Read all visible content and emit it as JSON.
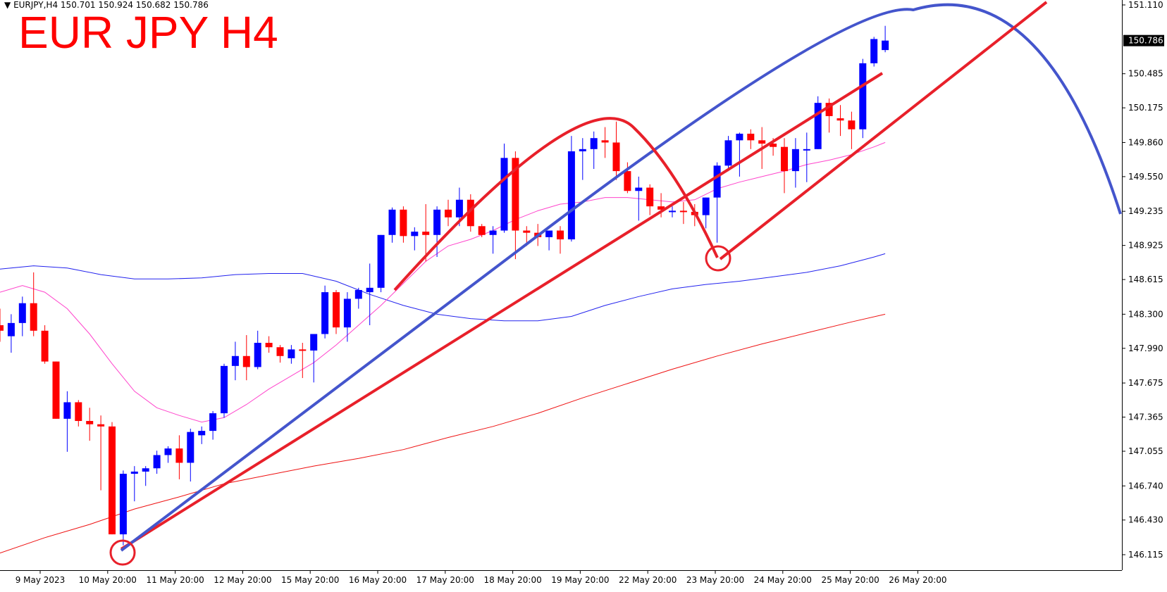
{
  "header": {
    "symbol": "EURJPY,H4",
    "ohlc": "150.701 150.924 150.682 150.786",
    "title_overlay": "EUR JPY H4"
  },
  "colors": {
    "bull": "#0000ff",
    "bear": "#ff0000",
    "ma_fast": "#ff44cc",
    "ma_mid": "#2222ee",
    "ma_slow": "#ee1111",
    "annotation_red": "#e8202a",
    "annotation_blue": "#4455cc"
  },
  "chart_data": {
    "type": "candlestick",
    "timeframe": "H4",
    "y_ticks": [
      "151.110",
      "150.485",
      "150.175",
      "149.860",
      "149.550",
      "149.235",
      "148.925",
      "148.615",
      "148.300",
      "147.990",
      "147.675",
      "147.365",
      "147.055",
      "146.740",
      "146.430",
      "146.115"
    ],
    "ylim": [
      146.02,
      151.19
    ],
    "x_labels": [
      "9 May 2023",
      "10 May 20:00",
      "11 May 20:00",
      "12 May 20:00",
      "15 May 20:00",
      "16 May 20:00",
      "17 May 20:00",
      "18 May 20:00",
      "19 May 20:00",
      "22 May 20:00",
      "23 May 20:00",
      "24 May 20:00",
      "25 May 20:00",
      "26 May 20:00"
    ],
    "current_price": "150.786",
    "candles": [
      {
        "o": 148.2,
        "h": 148.35,
        "l": 148.05,
        "c": 148.15
      },
      {
        "o": 148.1,
        "h": 148.3,
        "l": 147.95,
        "c": 148.22
      },
      {
        "o": 148.22,
        "h": 148.46,
        "l": 148.1,
        "c": 148.4
      },
      {
        "o": 148.4,
        "h": 148.68,
        "l": 148.1,
        "c": 148.15
      },
      {
        "o": 148.15,
        "h": 148.2,
        "l": 147.85,
        "c": 147.87
      },
      {
        "o": 147.87,
        "h": 147.87,
        "l": 147.35,
        "c": 147.35
      },
      {
        "o": 147.35,
        "h": 147.6,
        "l": 147.05,
        "c": 147.5
      },
      {
        "o": 147.5,
        "h": 147.52,
        "l": 147.28,
        "c": 147.33
      },
      {
        "o": 147.33,
        "h": 147.45,
        "l": 147.15,
        "c": 147.3
      },
      {
        "o": 147.3,
        "h": 147.38,
        "l": 146.7,
        "c": 147.28
      },
      {
        "o": 147.28,
        "h": 147.32,
        "l": 146.3,
        "c": 146.3
      },
      {
        "o": 146.3,
        "h": 146.88,
        "l": 146.2,
        "c": 146.85
      },
      {
        "o": 146.85,
        "h": 146.92,
        "l": 146.6,
        "c": 146.87
      },
      {
        "o": 146.87,
        "h": 146.92,
        "l": 146.74,
        "c": 146.9
      },
      {
        "o": 146.9,
        "h": 147.06,
        "l": 146.85,
        "c": 147.02
      },
      {
        "o": 147.02,
        "h": 147.1,
        "l": 146.95,
        "c": 147.08
      },
      {
        "o": 147.08,
        "h": 147.2,
        "l": 146.8,
        "c": 146.95
      },
      {
        "o": 146.95,
        "h": 147.26,
        "l": 146.78,
        "c": 147.23
      },
      {
        "o": 147.2,
        "h": 147.28,
        "l": 147.12,
        "c": 147.24
      },
      {
        "o": 147.24,
        "h": 147.42,
        "l": 147.16,
        "c": 147.4
      },
      {
        "o": 147.4,
        "h": 147.85,
        "l": 147.36,
        "c": 147.83
      },
      {
        "o": 147.83,
        "h": 148.05,
        "l": 147.7,
        "c": 147.92
      },
      {
        "o": 147.92,
        "h": 148.11,
        "l": 147.7,
        "c": 147.82
      },
      {
        "o": 147.82,
        "h": 148.15,
        "l": 147.8,
        "c": 148.04
      },
      {
        "o": 148.04,
        "h": 148.1,
        "l": 147.95,
        "c": 148.0
      },
      {
        "o": 148.0,
        "h": 148.02,
        "l": 147.86,
        "c": 147.92
      },
      {
        "o": 147.9,
        "h": 148.02,
        "l": 147.85,
        "c": 147.98
      },
      {
        "o": 147.98,
        "h": 148.04,
        "l": 147.72,
        "c": 147.97
      },
      {
        "o": 147.97,
        "h": 148.12,
        "l": 147.68,
        "c": 148.12
      },
      {
        "o": 148.12,
        "h": 148.56,
        "l": 148.08,
        "c": 148.5
      },
      {
        "o": 148.5,
        "h": 148.52,
        "l": 148.12,
        "c": 148.18
      },
      {
        "o": 148.18,
        "h": 148.5,
        "l": 148.05,
        "c": 148.44
      },
      {
        "o": 148.44,
        "h": 148.54,
        "l": 148.35,
        "c": 148.52
      },
      {
        "o": 148.5,
        "h": 148.76,
        "l": 148.2,
        "c": 148.54
      },
      {
        "o": 148.54,
        "h": 149.02,
        "l": 148.5,
        "c": 149.02
      },
      {
        "o": 149.02,
        "h": 149.27,
        "l": 148.95,
        "c": 149.25
      },
      {
        "o": 149.25,
        "h": 149.28,
        "l": 148.95,
        "c": 149.01
      },
      {
        "o": 149.01,
        "h": 149.09,
        "l": 148.88,
        "c": 149.05
      },
      {
        "o": 149.05,
        "h": 149.3,
        "l": 148.78,
        "c": 149.02
      },
      {
        "o": 149.02,
        "h": 149.28,
        "l": 148.82,
        "c": 149.25
      },
      {
        "o": 149.25,
        "h": 149.34,
        "l": 149.1,
        "c": 149.18
      },
      {
        "o": 149.18,
        "h": 149.45,
        "l": 149.1,
        "c": 149.34
      },
      {
        "o": 149.34,
        "h": 149.39,
        "l": 149.05,
        "c": 149.1
      },
      {
        "o": 149.1,
        "h": 149.12,
        "l": 149.0,
        "c": 149.02
      },
      {
        "o": 149.02,
        "h": 149.1,
        "l": 148.85,
        "c": 149.06
      },
      {
        "o": 149.06,
        "h": 149.85,
        "l": 149.04,
        "c": 149.72
      },
      {
        "o": 149.72,
        "h": 149.78,
        "l": 148.8,
        "c": 149.06
      },
      {
        "o": 149.06,
        "h": 149.1,
        "l": 148.92,
        "c": 149.04
      },
      {
        "o": 149.04,
        "h": 149.12,
        "l": 148.92,
        "c": 149.0
      },
      {
        "o": 149.0,
        "h": 149.06,
        "l": 148.88,
        "c": 149.06
      },
      {
        "o": 149.06,
        "h": 149.1,
        "l": 148.85,
        "c": 148.98
      },
      {
        "o": 148.98,
        "h": 149.92,
        "l": 148.96,
        "c": 149.78
      },
      {
        "o": 149.78,
        "h": 149.9,
        "l": 149.52,
        "c": 149.8
      },
      {
        "o": 149.8,
        "h": 149.96,
        "l": 149.62,
        "c": 149.9
      },
      {
        "o": 149.88,
        "h": 150.0,
        "l": 149.72,
        "c": 149.86
      },
      {
        "o": 149.86,
        "h": 150.05,
        "l": 149.52,
        "c": 149.6
      },
      {
        "o": 149.6,
        "h": 149.68,
        "l": 149.4,
        "c": 149.42
      },
      {
        "o": 149.42,
        "h": 149.55,
        "l": 149.15,
        "c": 149.45
      },
      {
        "o": 149.45,
        "h": 149.48,
        "l": 149.2,
        "c": 149.28
      },
      {
        "o": 149.28,
        "h": 149.4,
        "l": 149.18,
        "c": 149.25
      },
      {
        "o": 149.24,
        "h": 149.28,
        "l": 149.18,
        "c": 149.24
      },
      {
        "o": 149.24,
        "h": 149.32,
        "l": 149.12,
        "c": 149.23
      },
      {
        "o": 149.23,
        "h": 149.3,
        "l": 149.1,
        "c": 149.2
      },
      {
        "o": 149.2,
        "h": 149.36,
        "l": 149.08,
        "c": 149.36
      },
      {
        "o": 149.36,
        "h": 149.68,
        "l": 148.95,
        "c": 149.65
      },
      {
        "o": 149.65,
        "h": 149.92,
        "l": 149.6,
        "c": 149.88
      },
      {
        "o": 149.88,
        "h": 149.95,
        "l": 149.55,
        "c": 149.94
      },
      {
        "o": 149.94,
        "h": 149.98,
        "l": 149.8,
        "c": 149.88
      },
      {
        "o": 149.88,
        "h": 150.0,
        "l": 149.62,
        "c": 149.85
      },
      {
        "o": 149.85,
        "h": 149.9,
        "l": 149.74,
        "c": 149.82
      },
      {
        "o": 149.82,
        "h": 149.9,
        "l": 149.4,
        "c": 149.6
      },
      {
        "o": 149.6,
        "h": 149.9,
        "l": 149.45,
        "c": 149.8
      },
      {
        "o": 149.8,
        "h": 149.95,
        "l": 149.5,
        "c": 149.8
      },
      {
        "o": 149.8,
        "h": 150.28,
        "l": 149.8,
        "c": 150.22
      },
      {
        "o": 150.22,
        "h": 150.26,
        "l": 149.95,
        "c": 150.1
      },
      {
        "o": 150.08,
        "h": 150.2,
        "l": 149.92,
        "c": 150.06
      },
      {
        "o": 150.06,
        "h": 150.14,
        "l": 149.8,
        "c": 149.98
      },
      {
        "o": 149.98,
        "h": 150.62,
        "l": 149.9,
        "c": 150.58
      },
      {
        "o": 150.58,
        "h": 150.82,
        "l": 150.55,
        "c": 150.8
      },
      {
        "o": 150.7,
        "h": 150.92,
        "l": 150.68,
        "c": 150.786
      }
    ],
    "ma_fast": [
      [
        0,
        148.5
      ],
      [
        2,
        148.56
      ],
      [
        4,
        148.5
      ],
      [
        6,
        148.35
      ],
      [
        8,
        148.12
      ],
      [
        10,
        147.85
      ],
      [
        12,
        147.6
      ],
      [
        14,
        147.45
      ],
      [
        16,
        147.38
      ],
      [
        18,
        147.32
      ],
      [
        20,
        147.36
      ],
      [
        22,
        147.48
      ],
      [
        24,
        147.62
      ],
      [
        26,
        147.74
      ],
      [
        28,
        147.86
      ],
      [
        30,
        148.02
      ],
      [
        32,
        148.2
      ],
      [
        34,
        148.38
      ],
      [
        36,
        148.58
      ],
      [
        38,
        148.78
      ],
      [
        40,
        148.92
      ],
      [
        42,
        148.98
      ],
      [
        44,
        149.06
      ],
      [
        46,
        149.16
      ],
      [
        48,
        149.24
      ],
      [
        50,
        149.3
      ],
      [
        52,
        149.32
      ],
      [
        54,
        149.36
      ],
      [
        56,
        149.36
      ],
      [
        58,
        149.34
      ],
      [
        60,
        149.32
      ],
      [
        62,
        149.34
      ],
      [
        64,
        149.44
      ],
      [
        66,
        149.5
      ],
      [
        68,
        149.55
      ],
      [
        70,
        149.6
      ],
      [
        72,
        149.66
      ],
      [
        74,
        149.7
      ],
      [
        76,
        149.75
      ],
      [
        78,
        149.82
      ],
      [
        79,
        149.86
      ]
    ],
    "ma_mid": [
      [
        0,
        148.71
      ],
      [
        3,
        148.74
      ],
      [
        6,
        148.72
      ],
      [
        9,
        148.66
      ],
      [
        12,
        148.62
      ],
      [
        15,
        148.62
      ],
      [
        18,
        148.63
      ],
      [
        21,
        148.66
      ],
      [
        24,
        148.67
      ],
      [
        27,
        148.67
      ],
      [
        30,
        148.6
      ],
      [
        33,
        148.48
      ],
      [
        36,
        148.38
      ],
      [
        39,
        148.3
      ],
      [
        42,
        148.26
      ],
      [
        45,
        148.24
      ],
      [
        48,
        148.24
      ],
      [
        51,
        148.28
      ],
      [
        54,
        148.38
      ],
      [
        57,
        148.46
      ],
      [
        60,
        148.53
      ],
      [
        63,
        148.57
      ],
      [
        66,
        148.6
      ],
      [
        69,
        148.64
      ],
      [
        72,
        148.68
      ],
      [
        75,
        148.74
      ],
      [
        78,
        148.82
      ],
      [
        79,
        148.85
      ]
    ],
    "ma_slow": [
      [
        0,
        146.13
      ],
      [
        4,
        146.27
      ],
      [
        8,
        146.39
      ],
      [
        12,
        146.53
      ],
      [
        16,
        146.64
      ],
      [
        20,
        146.76
      ],
      [
        24,
        146.84
      ],
      [
        28,
        146.92
      ],
      [
        32,
        146.99
      ],
      [
        36,
        147.07
      ],
      [
        40,
        147.18
      ],
      [
        44,
        147.28
      ],
      [
        48,
        147.4
      ],
      [
        52,
        147.54
      ],
      [
        56,
        147.67
      ],
      [
        60,
        147.8
      ],
      [
        64,
        147.92
      ],
      [
        68,
        148.03
      ],
      [
        72,
        148.13
      ],
      [
        76,
        148.23
      ],
      [
        79,
        148.3
      ]
    ]
  }
}
